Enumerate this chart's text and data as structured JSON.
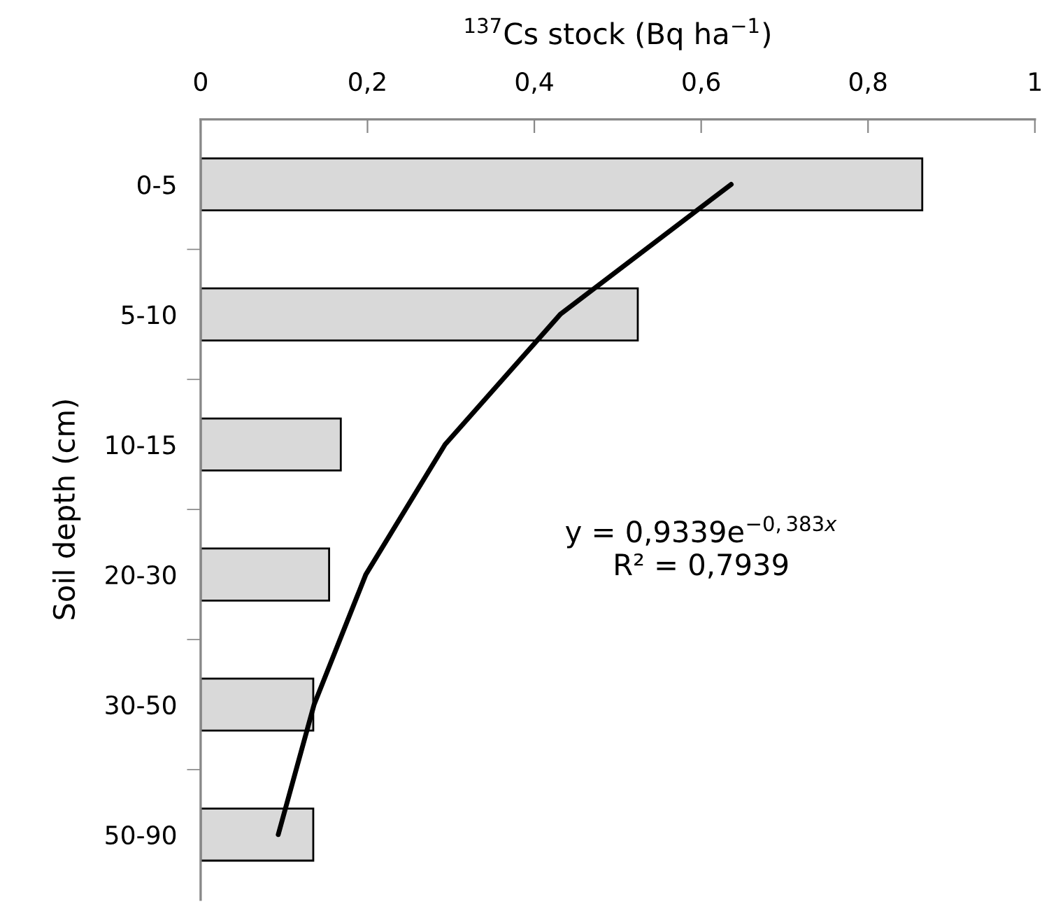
{
  "chart_data": {
    "type": "bar",
    "orientation": "horizontal",
    "xlabel": "$^{137}$Cs stock (Bq ha$^{−1}$)",
    "ylabel": "Soil depth (cm)",
    "categories": [
      "0-5",
      "5-10",
      "10-15",
      "20-30",
      "30-50",
      "50-90"
    ],
    "series": [
      {
        "color": "#d9d9d9",
        "values": [
          0.865,
          0.524,
          0.168,
          0.154,
          0.135,
          0.135
        ]
      },
      {
        "type": "line",
        "color": "#000000",
        "values": [
          0.636,
          0.431,
          0.293,
          0.198,
          0.136,
          0.093
        ]
      }
    ],
    "xlim": [
      0,
      1
    ],
    "xticks": [
      0,
      {
        "value": 0.2,
        "label": "0,2"
      },
      {
        "value": 0.4,
        "label": "0,4"
      },
      {
        "value": 0.6,
        "label": "0,6"
      },
      {
        "value": 0.8,
        "label": "0,8"
      },
      1
    ],
    "annotations": [
      "y = 0,9339e$^{−0,383x}$\nR² = 0,7939"
    ],
    "grid": false,
    "legend": false
  }
}
